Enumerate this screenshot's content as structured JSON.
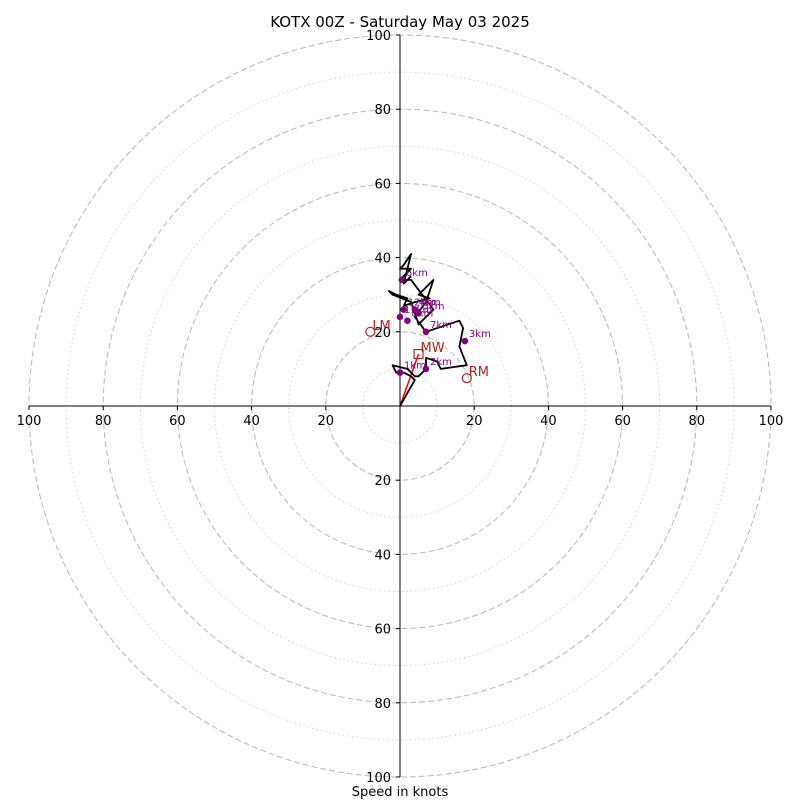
{
  "chart_data": {
    "type": "scatter",
    "title": "KOTX 00Z - Saturday May 03 2025",
    "xlabel": "Speed in knots",
    "xlim": [
      -100,
      100
    ],
    "ylim": [
      -100,
      100
    ],
    "ring_speeds_major": [
      20,
      40,
      60,
      80,
      100
    ],
    "ring_speeds_minor": [
      10,
      30,
      50,
      70,
      90
    ],
    "x_ticks": [
      "100",
      "80",
      "60",
      "40",
      "20",
      "20",
      "40",
      "60",
      "80",
      "100"
    ],
    "x_tick_values": [
      -100,
      -80,
      -60,
      -40,
      -20,
      20,
      40,
      60,
      80,
      100
    ],
    "y_ticks": [
      "100",
      "80",
      "60",
      "40",
      "20",
      "20",
      "40",
      "60",
      "80",
      "100"
    ],
    "y_tick_values": [
      100,
      80,
      60,
      40,
      20,
      -20,
      -40,
      -60,
      -80,
      -100
    ],
    "grid": true,
    "series": [
      {
        "type": "line",
        "color": "#000000",
        "u": [
          0,
          4,
          3,
          1,
          -1,
          -2,
          2,
          4,
          5,
          7,
          7,
          10,
          11,
          18,
          16,
          17,
          16,
          7,
          4,
          7,
          9,
          5,
          8,
          4,
          1,
          2,
          -1,
          -3,
          -2,
          3,
          5,
          9,
          3,
          0,
          1,
          3,
          0,
          1,
          3,
          1,
          3
        ],
        "v": [
          0,
          7,
          8,
          9,
          9,
          11,
          10,
          8,
          8,
          10,
          13,
          12,
          10,
          11,
          16,
          21,
          23,
          20,
          24,
          28,
          34,
          30,
          29,
          28,
          27,
          29,
          30,
          31,
          30,
          28,
          22,
          26,
          34,
          34,
          35,
          37,
          37,
          38,
          41,
          33,
          35
        ]
      }
    ],
    "height_markers": [
      {
        "label": "1km",
        "u": 0,
        "v": 9
      },
      {
        "label": "2km",
        "u": 7,
        "v": 10
      },
      {
        "label": "3km",
        "u": 17.5,
        "v": 17.5
      },
      {
        "label": "7km",
        "u": 7,
        "v": 20
      },
      {
        "label": "8km",
        "u": 2,
        "v": 23
      },
      {
        "label": "11km",
        "u": 0,
        "v": 24
      },
      {
        "label": "12km",
        "u": 1,
        "v": 26
      },
      {
        "label": "4km",
        "u": 4,
        "v": 26
      },
      {
        "label": "5km",
        "u": 5,
        "v": 25
      },
      {
        "label": "6km",
        "u": 0.5,
        "v": 34
      }
    ],
    "storm_motion": [
      {
        "label": "LM",
        "u": -8,
        "v": 20,
        "marker": "circle"
      },
      {
        "label": "MW",
        "u": 5,
        "v": 14,
        "marker": "square"
      },
      {
        "label": "RM",
        "u": 18,
        "v": 7.5,
        "marker": "circle"
      }
    ],
    "motion_vector": {
      "color": "#ff0000",
      "u": 5,
      "v": 14
    },
    "motion_color": "#b22222",
    "marker_color": "#800080"
  }
}
